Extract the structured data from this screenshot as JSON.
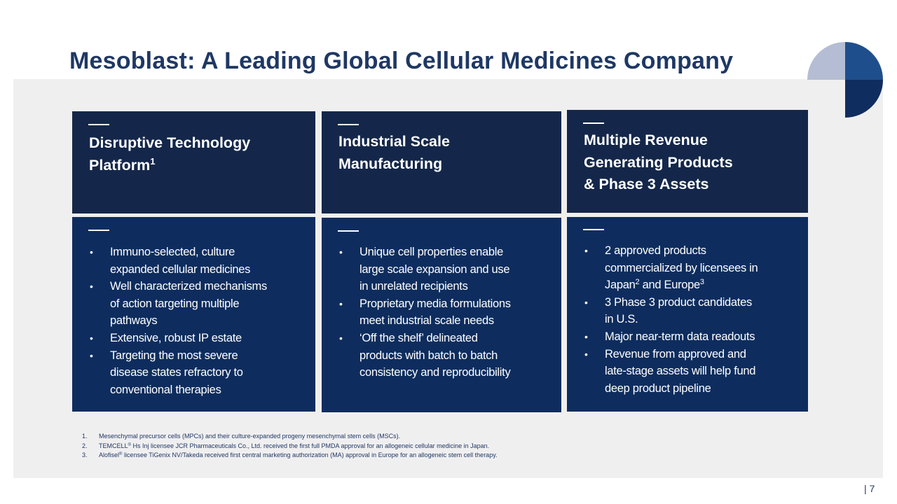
{
  "title": "Mesoblast: A Leading Global Cellular Medicines Company",
  "colors": {
    "title": "#1f3864",
    "header_card": "#14274a",
    "body_card": "#0e2d5e",
    "panel_background": "#f0eff0",
    "logo_light": "#b4bdd3",
    "logo_mid": "#1f4e8c",
    "logo_dark": "#0f2d5e"
  },
  "logo_icon": "mesoblast-logo-shapes",
  "columns": [
    {
      "heading_line1": "Disruptive Technology",
      "heading_line2": "Platform",
      "heading_sup": "1",
      "bullets": [
        {
          "l1": "Immuno-selected, culture",
          "l2": "expanded cellular medicines"
        },
        {
          "l1": "Well characterized mechanisms",
          "l2": "of action targeting multiple",
          "l3": "pathways"
        },
        {
          "l1": "Extensive, robust IP estate"
        },
        {
          "l1": "Targeting the most severe",
          "l2": "disease states refractory to",
          "l3": "conventional therapies"
        }
      ]
    },
    {
      "heading_line1": "Industrial Scale",
      "heading_line2": "Manufacturing",
      "bullets": [
        {
          "l1": "Unique cell properties enable",
          "l2": "large scale expansion and use",
          "l3": "in unrelated recipients"
        },
        {
          "l1": "Proprietary media formulations",
          "l2": "meet industrial scale needs"
        },
        {
          "l1": "‘Off the shelf’ delineated",
          "l2": "products with batch to batch",
          "l3": "consistency and reproducibility"
        }
      ]
    },
    {
      "heading_line1": "Multiple Revenue",
      "heading_line2": "Generating Products",
      "heading_line3": "& Phase 3 Assets",
      "bullets": [
        {
          "l1": "2 approved products",
          "l2": "commercialized by licensees in",
          "l3a": "Japan",
          "l3a_sup": "2",
          "l3b": " and Europe",
          "l3b_sup": "3"
        },
        {
          "l1": "3 Phase 3 product candidates",
          "l2": "in U.S."
        },
        {
          "l1": "Major near-term data readouts"
        },
        {
          "l1": "Revenue from approved and",
          "l2": "late-stage assets will help fund",
          "l3": "deep product pipeline"
        }
      ]
    }
  ],
  "bullet_char": "•",
  "footnotes": [
    {
      "num": "1.",
      "text": "Mesenchymal precursor cells (MPCs) and their culture-expanded progeny mesenchymal stem cells (MSCs)."
    },
    {
      "num": "2.",
      "pre": "TEMCELL",
      "sup": "®",
      "text": " Hs Inj licensee JCR Pharmaceuticals Co., Ltd. received the first full PMDA approval for an allogeneic cellular medicine in Japan."
    },
    {
      "num": "3.",
      "pre": "Alofisel",
      "sup": "®",
      "text": " licensee TiGenix NV/Takeda received first central marketing authorization (MA) approval in Europe for an allogeneic stem cell therapy."
    }
  ],
  "page_number": "| 7"
}
